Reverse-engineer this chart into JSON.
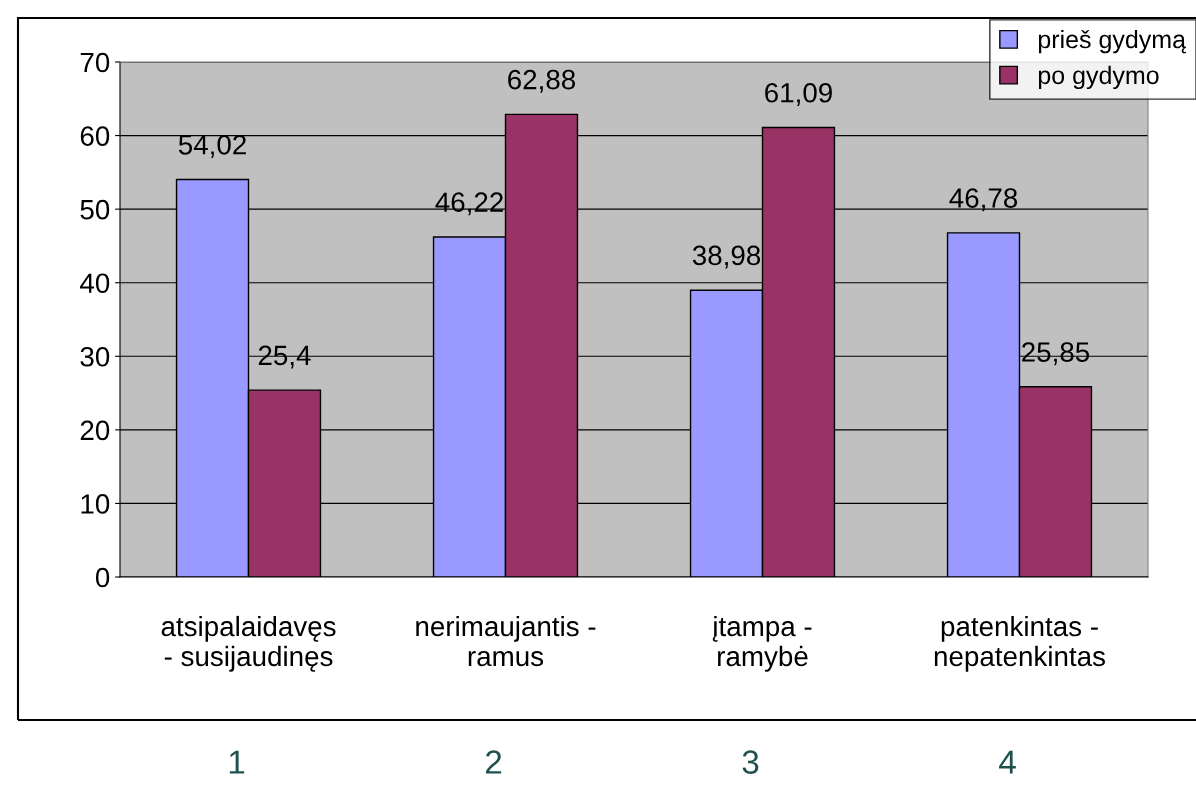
{
  "chart_data": {
    "type": "bar",
    "categories": [
      "atsipalaidavęs\n- susijaudinęs",
      "nerimaujantis -\nramus",
      "įtampa -\nramybė",
      "patenkintas -\nnepatenkintas"
    ],
    "series": [
      {
        "name": "prieš gydymą",
        "color": "#9999ff",
        "values": [
          54.02,
          46.22,
          38.98,
          46.78
        ],
        "value_labels": [
          "54,02",
          "46,22",
          "38,98",
          "46,78"
        ]
      },
      {
        "name": "po gydymo",
        "color": "#993366",
        "values": [
          25.4,
          62.88,
          61.09,
          25.85
        ],
        "value_labels": [
          "25,4",
          "62,88",
          "61,09",
          "25,85"
        ]
      }
    ],
    "ylim": [
      0,
      70
    ],
    "yticks": [
      0,
      10,
      20,
      30,
      40,
      50,
      60,
      70
    ],
    "grid": "y",
    "legend": "top right",
    "annotations": [
      "1",
      "2",
      "3",
      "4"
    ]
  }
}
